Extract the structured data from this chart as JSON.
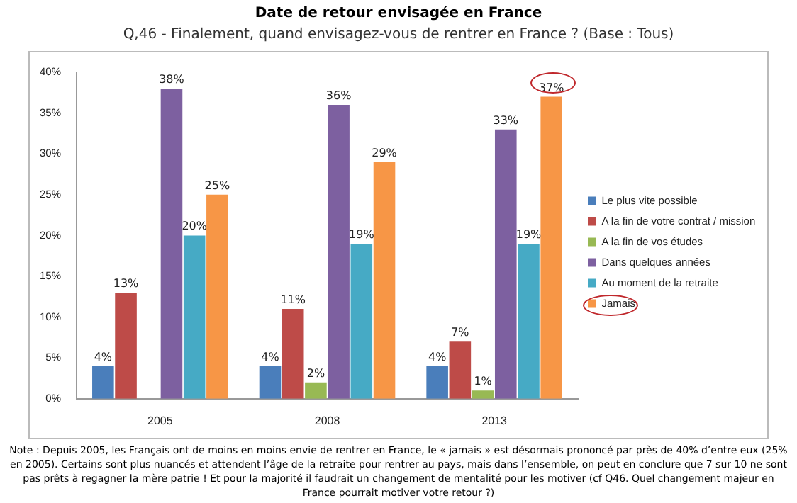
{
  "chart_data": {
    "type": "bar",
    "title": "Date de retour envisagée en France",
    "subtitle": "Q,46 - Finalement, quand envisagez-vous de rentrer en France ? (Base : Tous)",
    "categories": [
      "2005",
      "2008",
      "2013"
    ],
    "series": [
      {
        "name": "Le plus vite possible",
        "color": "#4a7ebb",
        "values": [
          4,
          4,
          4
        ]
      },
      {
        "name": "A la fin de votre contrat / mission",
        "color": "#be4b48",
        "values": [
          13,
          11,
          7
        ]
      },
      {
        "name": "A la fin de vos études",
        "color": "#98b954",
        "values": [
          null,
          2,
          1
        ]
      },
      {
        "name": "Dans quelques années",
        "color": "#7d60a0",
        "values": [
          38,
          36,
          33
        ]
      },
      {
        "name": "Au moment de la retraite",
        "color": "#46aac5",
        "values": [
          20,
          19,
          19
        ]
      },
      {
        "name": "Jamais",
        "color": "#f79646",
        "values": [
          25,
          29,
          37
        ]
      }
    ],
    "value_labels": [
      [
        "4%",
        "4%",
        "4%"
      ],
      [
        "13%",
        "11%",
        "7%"
      ],
      [
        null,
        "2%",
        "1%"
      ],
      [
        "38%",
        "36%",
        "33%"
      ],
      [
        "20%",
        "19%",
        "19%"
      ],
      [
        "25%",
        "29%",
        "37%"
      ]
    ],
    "ylim": [
      0,
      40
    ],
    "yticks": [
      {
        "value": 0,
        "label": "0%"
      },
      {
        "value": 5,
        "label": "5%"
      },
      {
        "value": 10,
        "label": "10%"
      },
      {
        "value": 15,
        "label": "15%"
      },
      {
        "value": 20,
        "label": "20%"
      },
      {
        "value": 25,
        "label": "25%"
      },
      {
        "value": 30,
        "label": "30%"
      },
      {
        "value": 35,
        "label": "35%"
      },
      {
        "value": 40,
        "label": "40%"
      }
    ],
    "grid": false,
    "legend": "right",
    "annotations": [
      "Note : Depuis 2005, les Français ont de moins en moins envie de rentrer en France, le « jamais » est désormais prononcé par près de 40% d’entre eux (25% en 2005). Certains sont plus nuancés et attendent l’âge de la retraite pour rentrer au pays,  mais dans l’ensemble, on peut en conclure que 7 sur 10  ne sont pas prêts à regagner la mère patrie ! Et pour la majorité il faudrait un changement de mentalité pour les motiver (cf Q46. Quel changement majeur en France pourrait motiver votre retour ?)"
    ]
  }
}
